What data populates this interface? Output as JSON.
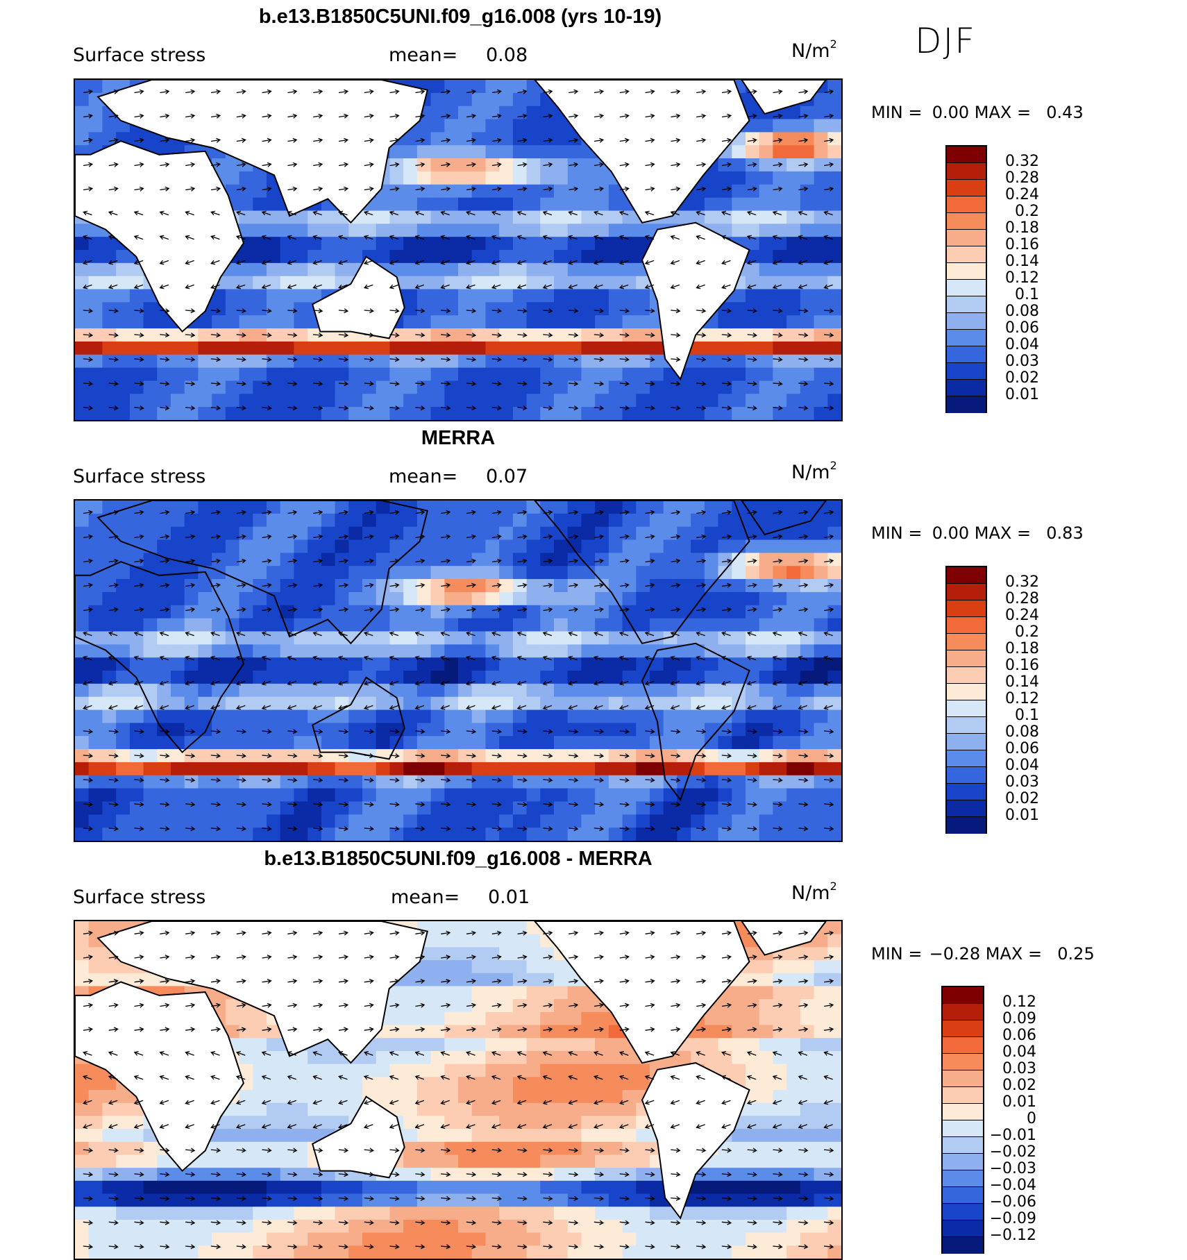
{
  "season": "DJF",
  "panels": [
    {
      "id": "model",
      "title": "b.e13.B1850C5UNI.f09_g16.008 (yrs 10-19)",
      "variable": "Surface stress",
      "mean_label": "mean=",
      "mean_value": "0.08",
      "units": "N/m",
      "units_exp": "2",
      "min_label": "MIN =",
      "min_value": "0.00",
      "max_label": "MAX =",
      "max_value": "0.43",
      "colorbar_labels": [
        "0.32",
        "0.28",
        "0.24",
        "0.2",
        "0.18",
        "0.16",
        "0.14",
        "0.12",
        "0.1",
        "0.08",
        "0.06",
        "0.04",
        "0.03",
        "0.02",
        "0.01"
      ],
      "colorbar_colors": [
        "#7f0000",
        "#b51e08",
        "#d93f12",
        "#f26a3a",
        "#f68b5c",
        "#f8ad8a",
        "#fccdb2",
        "#fdebd7",
        "#d6e8f8",
        "#b2cbf2",
        "#8fb0ee",
        "#5b8ce9",
        "#3566de",
        "#1744c8",
        "#0a2aa6",
        "#061a7c"
      ],
      "field_type": "absolute"
    },
    {
      "id": "obs",
      "title": "MERRA",
      "variable": "Surface stress",
      "mean_label": "mean=",
      "mean_value": "0.07",
      "units": "N/m",
      "units_exp": "2",
      "min_label": "MIN =",
      "min_value": "0.00",
      "max_label": "MAX =",
      "max_value": "0.83",
      "colorbar_labels": [
        "0.32",
        "0.28",
        "0.24",
        "0.2",
        "0.18",
        "0.16",
        "0.14",
        "0.12",
        "0.1",
        "0.08",
        "0.06",
        "0.04",
        "0.03",
        "0.02",
        "0.01"
      ],
      "colorbar_colors": [
        "#7f0000",
        "#b51e08",
        "#d93f12",
        "#f26a3a",
        "#f68b5c",
        "#f8ad8a",
        "#fccdb2",
        "#fdebd7",
        "#d6e8f8",
        "#b2cbf2",
        "#8fb0ee",
        "#5b8ce9",
        "#3566de",
        "#1744c8",
        "#0a2aa6",
        "#061a7c"
      ],
      "field_type": "absolute"
    },
    {
      "id": "diff",
      "title": "b.e13.B1850C5UNI.f09_g16.008 - MERRA",
      "variable": "Surface stress",
      "mean_label": "mean=",
      "mean_value": "0.01",
      "units": "N/m",
      "units_exp": "2",
      "min_label": "MIN =",
      "min_value": "−0.28",
      "max_label": "MAX =",
      "max_value": "0.25",
      "colorbar_labels": [
        "0.12",
        "0.09",
        "0.06",
        "0.04",
        "0.03",
        "0.02",
        "0.01",
        "0",
        "−0.01",
        "−0.02",
        "−0.03",
        "−0.04",
        "−0.06",
        "−0.09",
        "−0.12"
      ],
      "colorbar_colors": [
        "#7f0000",
        "#b51e08",
        "#d93f12",
        "#f26a3a",
        "#f68b5c",
        "#f8ad8a",
        "#fccdb2",
        "#fdebd7",
        "#d6e8f8",
        "#b2cbf2",
        "#8fb0ee",
        "#5b8ce9",
        "#3566de",
        "#1744c8",
        "#0a2aa6",
        "#061a7c"
      ],
      "field_type": "difference"
    }
  ]
}
